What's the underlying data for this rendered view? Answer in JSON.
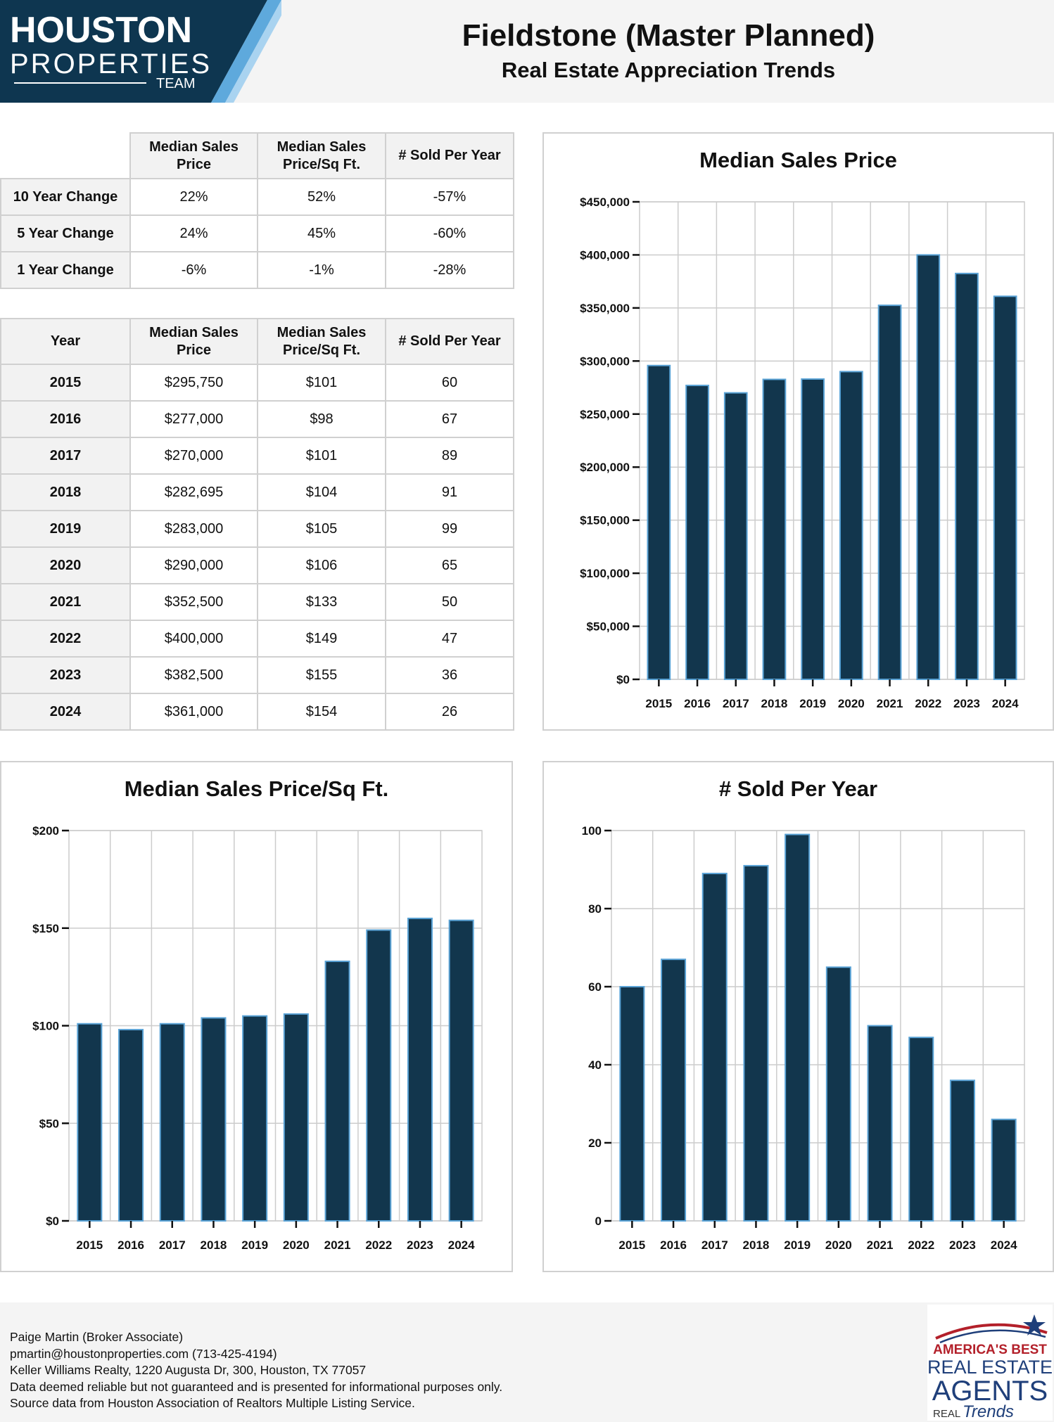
{
  "header": {
    "logo_line1": "HOUSTON",
    "logo_line2": "PROPERTIES",
    "logo_line3": "TEAM",
    "title": "Fieldstone (Master Planned)",
    "subtitle": "Real Estate Appreciation Trends"
  },
  "change_table": {
    "columns": [
      "Median Sales Price",
      "Median Sales Price/Sq Ft.",
      "# Sold Per Year"
    ],
    "rows": [
      {
        "label": "10 Year Change",
        "values": [
          "22%",
          "52%",
          "-57%"
        ]
      },
      {
        "label": "5 Year Change",
        "values": [
          "24%",
          "45%",
          "-60%"
        ]
      },
      {
        "label": "1 Year Change",
        "values": [
          "-6%",
          "-1%",
          "-28%"
        ]
      }
    ]
  },
  "year_table": {
    "columns": [
      "Year",
      "Median Sales Price",
      "Median Sales Price/Sq Ft.",
      "# Sold Per Year"
    ],
    "rows": [
      {
        "year": "2015",
        "price": "$295,750",
        "psf": "$101",
        "sold": "60"
      },
      {
        "year": "2016",
        "price": "$277,000",
        "psf": "$98",
        "sold": "67"
      },
      {
        "year": "2017",
        "price": "$270,000",
        "psf": "$101",
        "sold": "89"
      },
      {
        "year": "2018",
        "price": "$282,695",
        "psf": "$104",
        "sold": "91"
      },
      {
        "year": "2019",
        "price": "$283,000",
        "psf": "$105",
        "sold": "99"
      },
      {
        "year": "2020",
        "price": "$290,000",
        "psf": "$106",
        "sold": "65"
      },
      {
        "year": "2021",
        "price": "$352,500",
        "psf": "$133",
        "sold": "50"
      },
      {
        "year": "2022",
        "price": "$400,000",
        "psf": "$149",
        "sold": "47"
      },
      {
        "year": "2023",
        "price": "$382,500",
        "psf": "$155",
        "sold": "36"
      },
      {
        "year": "2024",
        "price": "$361,000",
        "psf": "$154",
        "sold": "26"
      }
    ]
  },
  "chart_data": [
    {
      "id": "price",
      "type": "bar",
      "title": "Median Sales Price",
      "categories": [
        "2015",
        "2016",
        "2017",
        "2018",
        "2019",
        "2020",
        "2021",
        "2022",
        "2023",
        "2024"
      ],
      "values": [
        295750,
        277000,
        270000,
        282695,
        283000,
        290000,
        352500,
        400000,
        382500,
        361000
      ],
      "ylim": [
        0,
        450000
      ],
      "yticks": [
        "$0",
        "$50,000",
        "$100,000",
        "$150,000",
        "$200,000",
        "$250,000",
        "$300,000",
        "$350,000",
        "$400,000",
        "$450,000"
      ],
      "grid": true
    },
    {
      "id": "psf",
      "type": "bar",
      "title": "Median Sales Price/Sq Ft.",
      "categories": [
        "2015",
        "2016",
        "2017",
        "2018",
        "2019",
        "2020",
        "2021",
        "2022",
        "2023",
        "2024"
      ],
      "values": [
        101,
        98,
        101,
        104,
        105,
        106,
        133,
        149,
        155,
        154
      ],
      "ylim": [
        0,
        200
      ],
      "yticks": [
        "$0",
        "$50",
        "$100",
        "$150",
        "$200"
      ],
      "grid": true
    },
    {
      "id": "sold",
      "type": "bar",
      "title": "# Sold Per Year",
      "categories": [
        "2015",
        "2016",
        "2017",
        "2018",
        "2019",
        "2020",
        "2021",
        "2022",
        "2023",
        "2024"
      ],
      "values": [
        60,
        67,
        89,
        91,
        99,
        65,
        50,
        47,
        36,
        26
      ],
      "ylim": [
        0,
        100
      ],
      "yticks": [
        "0",
        "20",
        "40",
        "60",
        "80",
        "100"
      ],
      "grid": true
    }
  ],
  "colors": {
    "bar_fill": "#12364d",
    "bar_edge": "#5aa3d6",
    "grid": "#cccccc",
    "header_bg": "#f4f4f4",
    "logo_bg": "#0e3650"
  },
  "footer": {
    "lines": [
      "Paige Martin (Broker Associate)",
      "pmartin@houstonproperties.com (713-425-4194)",
      "Keller Williams Realty, 1220 Augusta Dr, 300, Houston, TX 77057",
      "Data deemed reliable but not guaranteed and is presented for informational purposes only.",
      "Source data from Houston Association of Realtors Multiple Listing Service."
    ],
    "badge_line1": "AMERICA'S BEST",
    "badge_line2": "REAL ESTATE",
    "badge_line3": "AGENTS",
    "badge_line4": "REAL",
    "badge_line5": "Trends"
  }
}
